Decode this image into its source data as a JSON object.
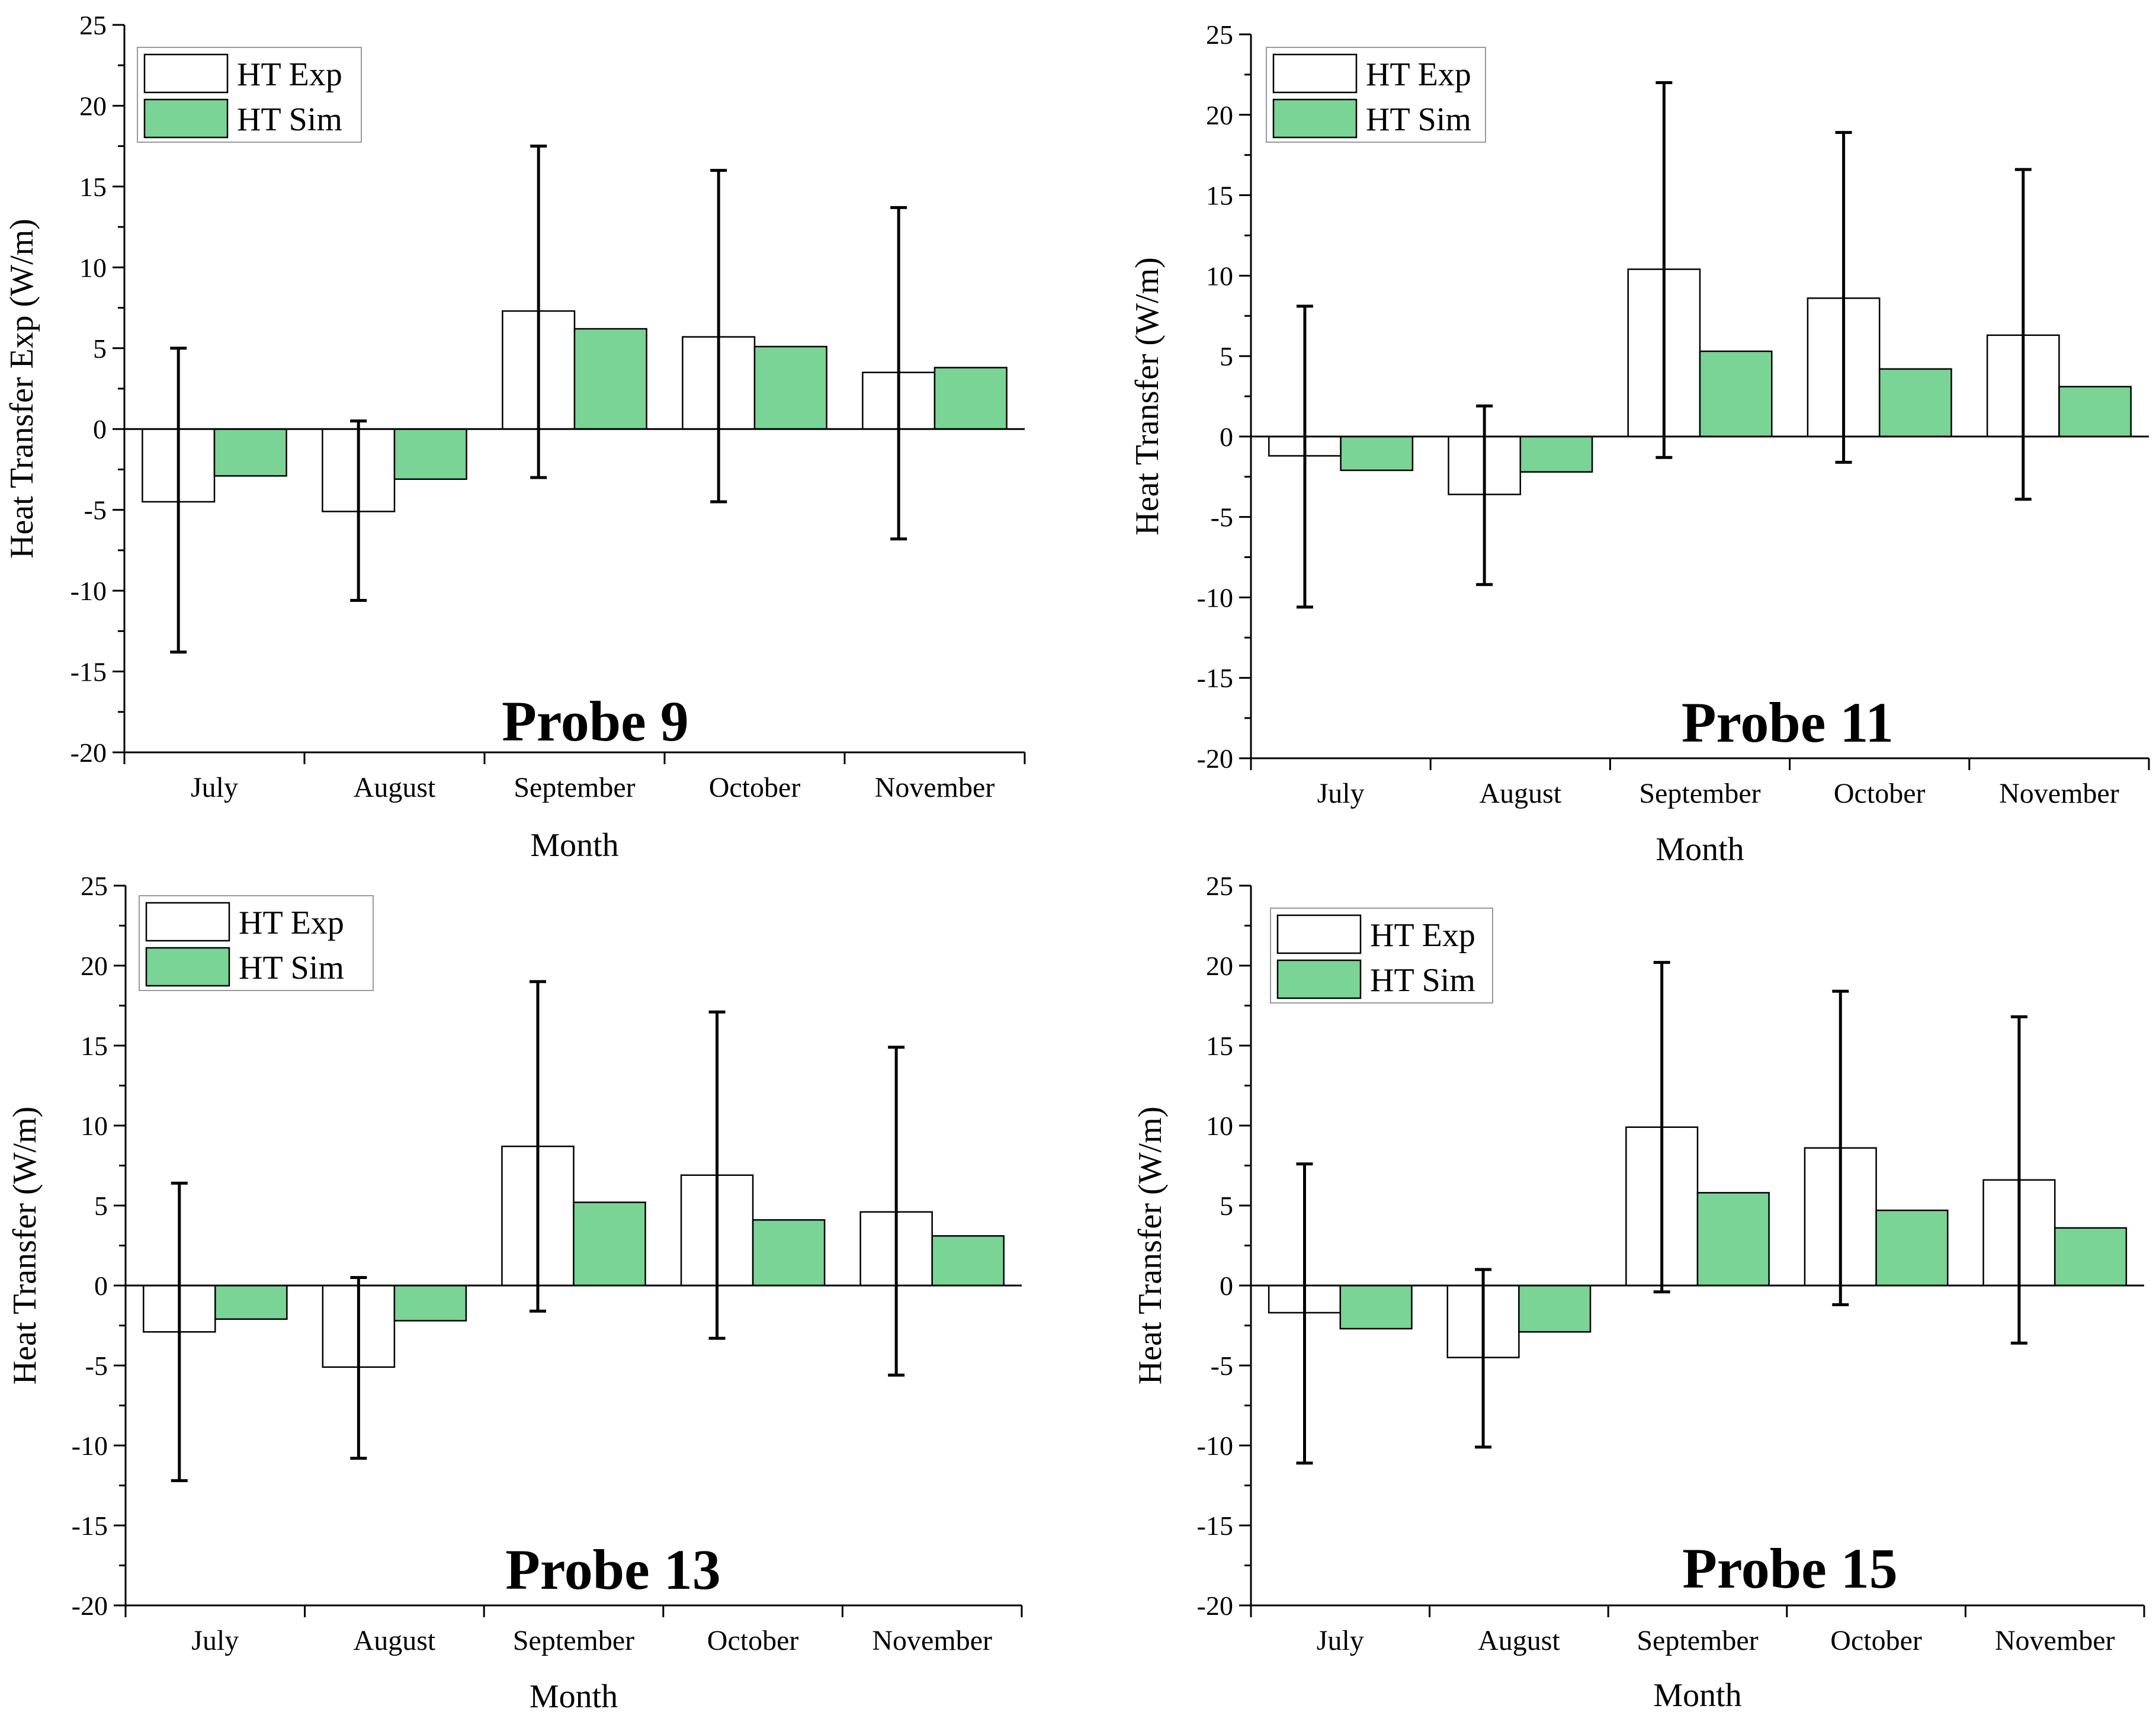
{
  "chart_data": [
    {
      "type": "bar",
      "title": "Probe 9",
      "xlabel": "Month",
      "ylabel": "Heat Transfer Exp (W/m)",
      "categories": [
        "July",
        "August",
        "September",
        "October",
        "November"
      ],
      "ylim": [
        -20,
        25
      ],
      "yticks": [
        "25",
        "20",
        "15",
        "10",
        "5",
        "0",
        "-5",
        "-10",
        "-15",
        "-20"
      ],
      "legend_position": "top-left",
      "series": [
        {
          "name": "HT Exp",
          "values": [
            -4.5,
            -5.1,
            7.3,
            5.7,
            3.5
          ],
          "error_low": [
            -13.8,
            -10.6,
            -3.0,
            -4.5,
            -6.8
          ],
          "error_high": [
            5.0,
            0.5,
            17.5,
            16.0,
            13.7
          ]
        },
        {
          "name": "HT Sim",
          "values": [
            -2.9,
            -3.1,
            6.2,
            5.1,
            3.8
          ]
        }
      ]
    },
    {
      "type": "bar",
      "title": "Probe 11",
      "xlabel": "Month",
      "ylabel": "Heat Transfer (W/m)",
      "categories": [
        "July",
        "August",
        "September",
        "October",
        "November"
      ],
      "ylim": [
        -20,
        25
      ],
      "yticks": [
        "25",
        "20",
        "15",
        "10",
        "5",
        "0",
        "-5",
        "-10",
        "-15",
        "-20"
      ],
      "legend_position": "top-left",
      "series": [
        {
          "name": "HT Exp",
          "values": [
            -1.2,
            -3.6,
            10.4,
            8.6,
            6.3
          ],
          "error_low": [
            -10.6,
            -9.2,
            -1.3,
            -1.6,
            -3.9
          ],
          "error_high": [
            8.1,
            1.9,
            22.0,
            18.9,
            16.6
          ]
        },
        {
          "name": "HT Sim",
          "values": [
            -2.1,
            -2.2,
            5.3,
            4.2,
            3.1
          ]
        }
      ]
    },
    {
      "type": "bar",
      "title": "Probe 13",
      "xlabel": "Month",
      "ylabel": "Heat Transfer (W/m)",
      "categories": [
        "July",
        "August",
        "September",
        "October",
        "November"
      ],
      "ylim": [
        -20,
        25
      ],
      "yticks": [
        "25",
        "20",
        "15",
        "10",
        "5",
        "0",
        "-5",
        "-10",
        "-15",
        "-20"
      ],
      "legend_position": "top-left",
      "series": [
        {
          "name": "HT Exp",
          "values": [
            -2.9,
            -5.1,
            8.7,
            6.9,
            4.6
          ],
          "error_low": [
            -12.2,
            -10.8,
            -1.6,
            -3.3,
            -5.6
          ],
          "error_high": [
            6.4,
            0.5,
            19.0,
            17.1,
            14.9
          ]
        },
        {
          "name": "HT Sim",
          "values": [
            -2.1,
            -2.2,
            5.2,
            4.1,
            3.1
          ]
        }
      ]
    },
    {
      "type": "bar",
      "title": "Probe 15",
      "xlabel": "Month",
      "ylabel": "Heat Transfer (W/m)",
      "categories": [
        "July",
        "August",
        "September",
        "October",
        "November"
      ],
      "ylim": [
        -20,
        25
      ],
      "yticks": [
        "25",
        "20",
        "15",
        "10",
        "5",
        "0",
        "-5",
        "-10",
        "-15",
        "-20"
      ],
      "legend_position": "top-left",
      "series": [
        {
          "name": "HT Exp",
          "values": [
            -1.7,
            -4.5,
            9.9,
            8.6,
            6.6
          ],
          "error_low": [
            -11.1,
            -10.1,
            -0.4,
            -1.2,
            -3.6
          ],
          "error_high": [
            7.6,
            1.0,
            20.2,
            18.4,
            16.8
          ]
        },
        {
          "name": "HT Sim",
          "values": [
            -2.7,
            -2.9,
            5.8,
            4.7,
            3.6
          ]
        }
      ]
    }
  ],
  "colors": {
    "exp_fill": "#ffffff",
    "sim_fill": "#79d496",
    "axis": "#000000"
  }
}
